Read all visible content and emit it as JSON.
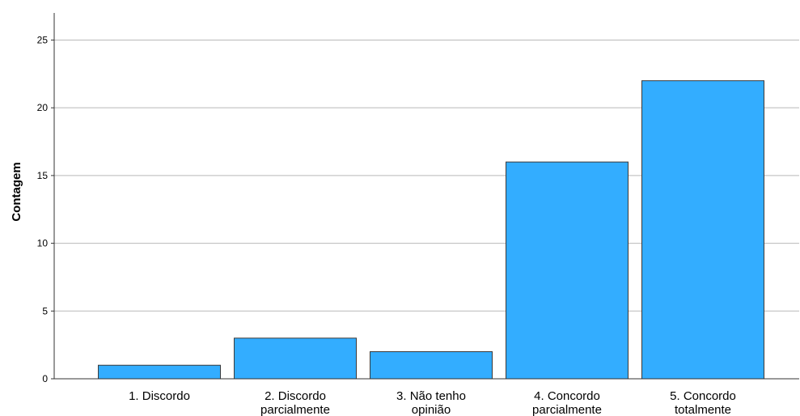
{
  "chart_data": {
    "type": "bar",
    "title": "",
    "xlabel": "",
    "ylabel": "Contagem",
    "categories": [
      [
        "1. Discordo"
      ],
      [
        "2. Discordo",
        "parcialmente"
      ],
      [
        "3. Não tenho",
        "opinião"
      ],
      [
        "4. Concordo",
        "parcialmente"
      ],
      [
        "5. Concordo",
        "totalmente"
      ]
    ],
    "values": [
      1,
      3,
      2,
      16,
      22
    ],
    "ylim": [
      0,
      27
    ],
    "yticks": [
      0,
      5,
      10,
      15,
      20,
      25
    ],
    "grid": true,
    "legend": "none",
    "colors": {
      "bar_fill": "#33adff",
      "bar_stroke": "#3a3a3a",
      "grid": "#b9b9b9",
      "axis": "#333333"
    }
  }
}
